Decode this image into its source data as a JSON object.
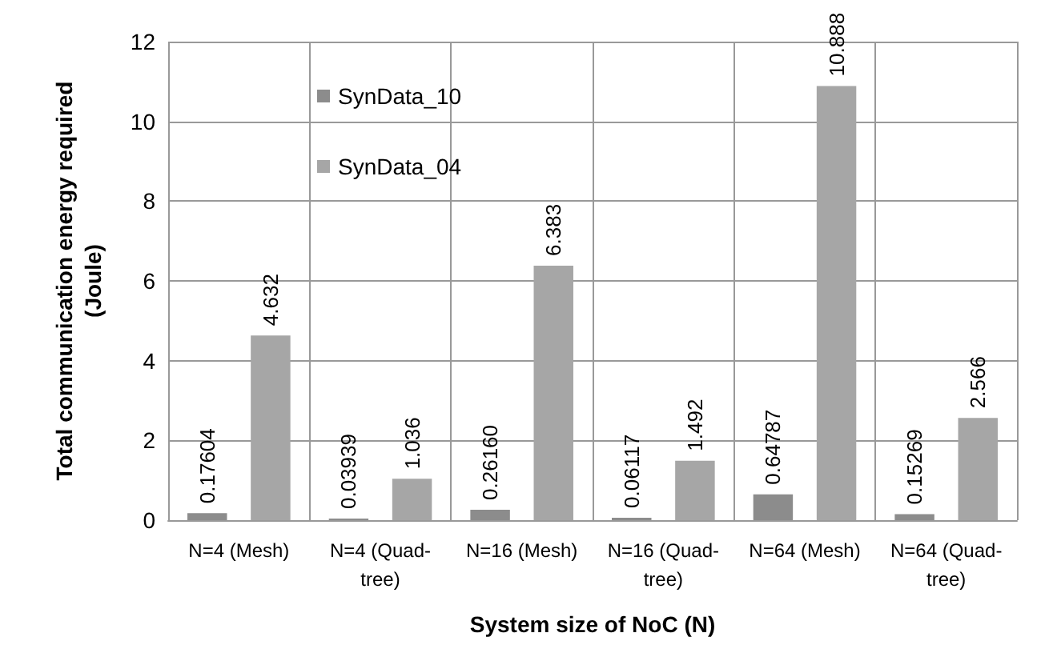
{
  "chart_data": {
    "type": "bar",
    "xlabel": "System size of NoC (N)",
    "ylabel": "Total communication energy required\n(Joule)",
    "categories": [
      "N=4 (Mesh)",
      "N=4 (Quad-\ntree)",
      "N=16 (Mesh)",
      "N=16 (Quad-\ntree)",
      "N=64 (Mesh)",
      "N=64 (Quad-\ntree)"
    ],
    "series": [
      {
        "name": "SynData_10",
        "color": "#8c8c8c",
        "values": [
          0.17604,
          0.03939,
          0.2616,
          0.06117,
          0.64787,
          0.15269
        ],
        "value_labels": [
          "0.17604",
          "0.03939",
          "0.26160",
          "0.06117",
          "0.64787",
          "0.15269"
        ]
      },
      {
        "name": "SynData_04",
        "color": "#a6a6a6",
        "values": [
          4.632,
          1.036,
          6.383,
          1.492,
          10.888,
          2.566
        ],
        "value_labels": [
          "4.632",
          "1.036",
          "6.383",
          "1.492",
          "10.888",
          "2.566"
        ]
      }
    ],
    "ylim": [
      0,
      12
    ],
    "yticks": [
      0,
      2,
      4,
      6,
      8,
      10,
      12
    ],
    "grid": true,
    "legend": "top left"
  }
}
